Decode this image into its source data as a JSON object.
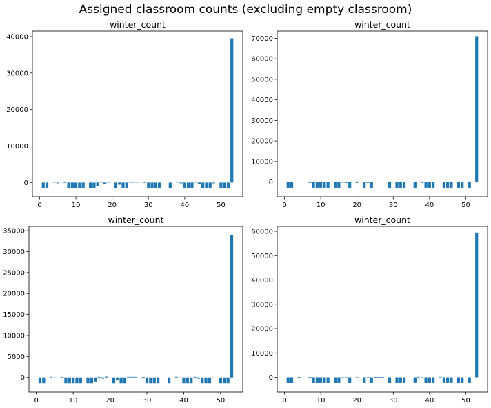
{
  "suptitle": "Assigned classroom counts (excluding empty classroom)",
  "colors": {
    "bar": "#1f77b4",
    "axis": "#000000"
  },
  "chart_data": [
    {
      "type": "bar",
      "title": "winter_count",
      "xlabel": "",
      "ylabel": "",
      "xlim": [
        -2,
        56
      ],
      "ylim": [
        -3900,
        41500
      ],
      "xticks": [
        0,
        10,
        20,
        30,
        40,
        50
      ],
      "yticks": [
        0,
        10000,
        20000,
        30000,
        40000
      ],
      "x": [
        1,
        2,
        4,
        5,
        7,
        8,
        9,
        10,
        11,
        12,
        14,
        15,
        16,
        17,
        18,
        19,
        21,
        22,
        23,
        24,
        25,
        26,
        27,
        29,
        30,
        31,
        32,
        33,
        36,
        38,
        39,
        40,
        41,
        42,
        43,
        44,
        45,
        46,
        47,
        48,
        50,
        51,
        52,
        53
      ],
      "values": [
        -1500,
        -1500,
        150,
        -200,
        100,
        -1500,
        -1500,
        -1500,
        -1500,
        -1500,
        -1500,
        -1500,
        -1000,
        150,
        -300,
        200,
        -1500,
        -600,
        -1500,
        -1500,
        150,
        150,
        150,
        100,
        -1500,
        -1500,
        -1500,
        -1500,
        -1500,
        150,
        -200,
        -1500,
        -1500,
        -1500,
        150,
        -300,
        -1500,
        -1500,
        -1500,
        -200,
        -1500,
        -1500,
        -1500,
        39500
      ]
    },
    {
      "type": "bar",
      "title": "winter_count",
      "xlabel": "",
      "ylabel": "",
      "xlim": [
        -2,
        56
      ],
      "ylim": [
        -7200,
        73500
      ],
      "xticks": [
        0,
        10,
        20,
        30,
        40,
        50
      ],
      "yticks": [
        0,
        10000,
        20000,
        30000,
        40000,
        50000,
        60000,
        70000
      ],
      "x": [
        1,
        2,
        5,
        7,
        8,
        9,
        10,
        11,
        12,
        14,
        15,
        16,
        17,
        18,
        20,
        22,
        23,
        24,
        28,
        29,
        31,
        32,
        33,
        36,
        37,
        38,
        39,
        40,
        41,
        43,
        44,
        45,
        46,
        48,
        49,
        51,
        53
      ],
      "values": [
        -2800,
        -2800,
        200,
        -400,
        -2800,
        -2800,
        -2800,
        -2800,
        -2800,
        -2800,
        -2800,
        -200,
        -400,
        -2800,
        -400,
        -2800,
        -400,
        -2800,
        200,
        -2800,
        -2800,
        -2800,
        -2800,
        -2800,
        200,
        -400,
        -2800,
        -2800,
        -2800,
        200,
        -2800,
        -2800,
        -2800,
        -2800,
        -2800,
        -2800,
        71000
      ]
    },
    {
      "type": "bar",
      "title": "winter_count",
      "xlabel": "",
      "ylabel": "",
      "xlim": [
        -2,
        56
      ],
      "ylim": [
        -3500,
        36000
      ],
      "xticks": [
        0,
        10,
        20,
        30,
        40,
        50
      ],
      "yticks": [
        0,
        5000,
        10000,
        15000,
        20000,
        25000,
        30000,
        35000
      ],
      "x": [
        1,
        2,
        4,
        5,
        7,
        8,
        9,
        10,
        11,
        12,
        14,
        15,
        16,
        17,
        18,
        19,
        21,
        22,
        23,
        24,
        25,
        26,
        27,
        29,
        30,
        31,
        32,
        33,
        36,
        38,
        39,
        40,
        41,
        42,
        43,
        44,
        45,
        46,
        47,
        48,
        50,
        51,
        52,
        53
      ],
      "values": [
        -1400,
        -1400,
        150,
        -200,
        100,
        -1400,
        -1400,
        -1400,
        -1400,
        -1400,
        -1400,
        -1400,
        -1000,
        150,
        -300,
        200,
        -1400,
        -600,
        -1400,
        -1400,
        150,
        150,
        150,
        100,
        -1400,
        -1400,
        -1400,
        -1400,
        -1400,
        150,
        -200,
        -1400,
        -1400,
        -1400,
        150,
        -300,
        -1400,
        -1400,
        -1400,
        -200,
        -1400,
        -1400,
        -1400,
        34000
      ]
    },
    {
      "type": "bar",
      "title": "winter_count",
      "xlabel": "",
      "ylabel": "",
      "xlim": [
        -2,
        56
      ],
      "ylim": [
        -6100,
        62000
      ],
      "xticks": [
        0,
        10,
        20,
        30,
        40,
        50
      ],
      "yticks": [
        0,
        10000,
        20000,
        30000,
        40000,
        50000,
        60000
      ],
      "x": [
        1,
        2,
        4,
        7,
        8,
        9,
        10,
        11,
        12,
        14,
        15,
        16,
        17,
        18,
        20,
        22,
        23,
        24,
        25,
        26,
        27,
        29,
        31,
        32,
        33,
        36,
        37,
        38,
        39,
        40,
        41,
        43,
        44,
        45,
        46,
        48,
        49,
        51,
        53
      ],
      "values": [
        -2400,
        -2400,
        150,
        100,
        -2400,
        -2400,
        -2400,
        -2400,
        -2400,
        -2400,
        -2400,
        -200,
        -400,
        -2400,
        -400,
        -2400,
        -400,
        -2400,
        150,
        150,
        150,
        -2400,
        -2400,
        -2400,
        -2400,
        -2400,
        200,
        -400,
        -2400,
        -2400,
        -2400,
        200,
        -2400,
        -2400,
        -2400,
        -2400,
        -2400,
        -2400,
        59500
      ]
    }
  ]
}
